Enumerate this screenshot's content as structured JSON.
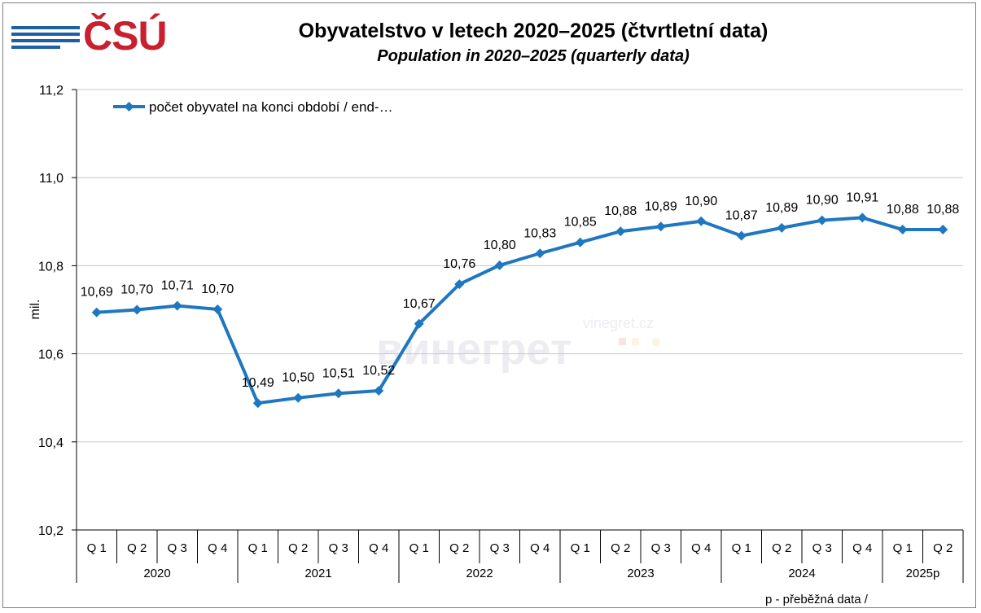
{
  "header": {
    "logo_text": "ČSÚ",
    "title": "Obyvatelstvo v letech 2020–2025 (čtvrtletní data)",
    "subtitle": "Population in 2020–2025 (quarterly data)"
  },
  "footnote": "p - přeběžná data /",
  "watermark": {
    "cyrillic": "винегрет",
    "latin": "vinegret.cz"
  },
  "colors": {
    "series": "#1f77c0",
    "logo_red": "#c8202f",
    "logo_blue": "#1f5fa6"
  },
  "chart_data": {
    "type": "line",
    "ylabel": "mil.",
    "ylim": [
      10.2,
      11.2
    ],
    "yticks": [
      "10,2",
      "10,4",
      "10,6",
      "10,8",
      "11,0",
      "11,2"
    ],
    "ytick_values": [
      10.2,
      10.4,
      10.6,
      10.8,
      11.0,
      11.2
    ],
    "grid": true,
    "legend_position": "top-left",
    "categories": [
      "Q 1",
      "Q 2",
      "Q 3",
      "Q 4",
      "Q 1",
      "Q 2",
      "Q 3",
      "Q 4",
      "Q 1",
      "Q 2",
      "Q 3",
      "Q 4",
      "Q 1",
      "Q 2",
      "Q 3",
      "Q 4",
      "Q 1",
      "Q 2",
      "Q 3",
      "Q 4",
      "Q 1",
      "Q 2"
    ],
    "groups": [
      {
        "label": "2020",
        "count": 4
      },
      {
        "label": "2021",
        "count": 4
      },
      {
        "label": "2022",
        "count": 4
      },
      {
        "label": "2023",
        "count": 4
      },
      {
        "label": "2024",
        "count": 4
      },
      {
        "label": "2025p",
        "count": 2
      }
    ],
    "series": [
      {
        "name": "počet obyvatel na konci období / end-…",
        "values": [
          10.694,
          10.7,
          10.709,
          10.701,
          10.488,
          10.5,
          10.51,
          10.516,
          10.668,
          10.758,
          10.801,
          10.828,
          10.853,
          10.878,
          10.889,
          10.901,
          10.868,
          10.886,
          10.903,
          10.909,
          10.882,
          10.882
        ],
        "labels": [
          "10,69",
          "10,70",
          "10,71",
          "10,70",
          "10,49",
          "10,50",
          "10,51",
          "10,52",
          "10,67",
          "10,76",
          "10,80",
          "10,83",
          "10,85",
          "10,88",
          "10,89",
          "10,90",
          "10,87",
          "10,89",
          "10,90",
          "10,91",
          "10,88",
          "10,88"
        ]
      }
    ]
  }
}
